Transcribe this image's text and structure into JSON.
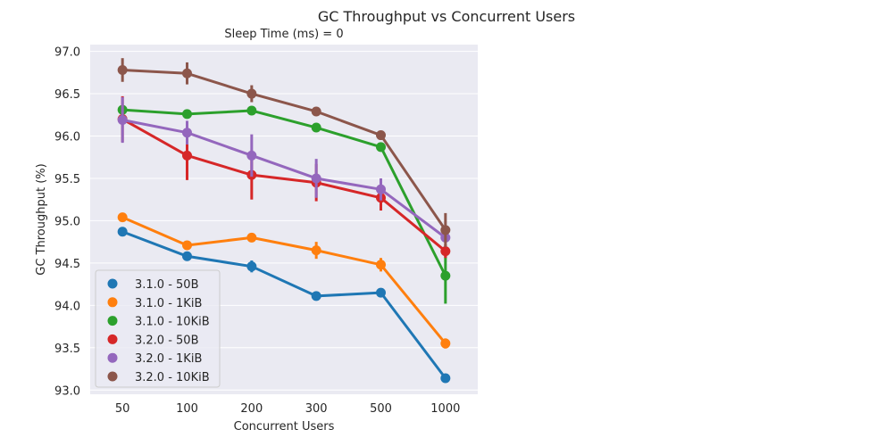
{
  "chart_data": {
    "type": "line",
    "title": "GC Throughput vs Concurrent Users",
    "subtitle": "Sleep Time (ms) = 0",
    "xlabel": "Concurrent Users",
    "ylabel": "GC Throughput (%)",
    "categories": [
      "50",
      "100",
      "200",
      "300",
      "500",
      "1000"
    ],
    "yticks": [
      "93.0",
      "93.5",
      "94.0",
      "94.5",
      "95.0",
      "95.5",
      "96.0",
      "96.5",
      "97.0"
    ],
    "ylim": [
      92.95,
      97.08
    ],
    "grid": true,
    "legend_position": "lower-left",
    "series": [
      {
        "name": "3.1.0 - 50B",
        "color": "#1f77b4",
        "values": [
          94.87,
          94.58,
          94.46,
          94.11,
          94.15,
          93.14
        ],
        "err": [
          0,
          0,
          0.07,
          0,
          0,
          0
        ]
      },
      {
        "name": "3.1.0 - 1KiB",
        "color": "#ff7f0e",
        "values": [
          95.04,
          94.71,
          94.8,
          94.65,
          94.48,
          93.55
        ],
        "err": [
          0,
          0,
          0.04,
          0.1,
          0.08,
          0.06
        ]
      },
      {
        "name": "3.1.0 - 10KiB",
        "color": "#2ca02c",
        "values": [
          96.31,
          96.26,
          96.3,
          96.1,
          95.87,
          94.35
        ],
        "err": [
          0,
          0,
          0,
          0,
          0,
          0.33
        ]
      },
      {
        "name": "3.2.0 - 50B",
        "color": "#d62728",
        "values": [
          96.2,
          95.77,
          95.54,
          95.45,
          95.27,
          94.64
        ],
        "err": [
          0.27,
          0.29,
          0.29,
          0.22,
          0.15,
          0.08
        ]
      },
      {
        "name": "3.2.0 - 1KiB",
        "color": "#9467bd",
        "values": [
          96.19,
          96.04,
          95.77,
          95.5,
          95.37,
          94.8
        ],
        "err": [
          0.27,
          0.14,
          0.25,
          0.23,
          0.13,
          0.05
        ]
      },
      {
        "name": "3.2.0 - 10KiB",
        "color": "#8c564b",
        "values": [
          96.78,
          96.74,
          96.5,
          96.29,
          96.01,
          94.89
        ],
        "err": [
          0.14,
          0.13,
          0.1,
          0,
          0,
          0.2
        ]
      }
    ]
  }
}
